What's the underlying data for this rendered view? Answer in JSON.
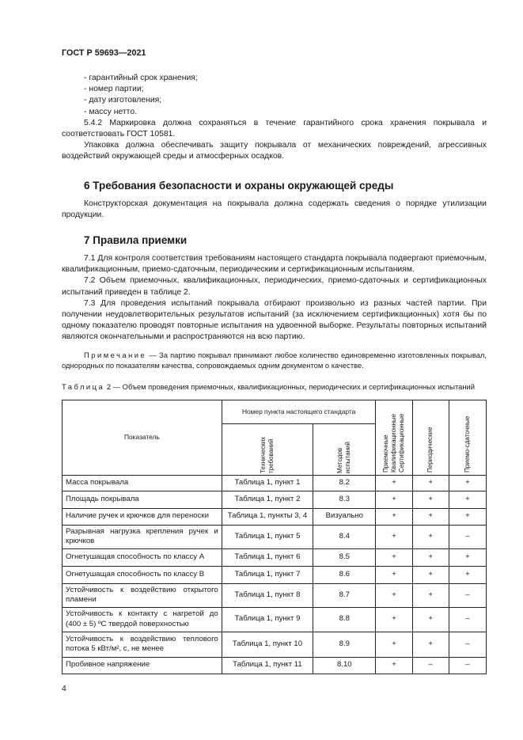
{
  "header": "ГОСТ Р 59693—2021",
  "list": [
    "- гарантийный срок хранения;",
    "- номер партии;",
    "- дату изготовления;",
    "- массу нетто."
  ],
  "p542": "5.4.2 Маркировка должна сохраняться в течение гарантийного срока хранения покрывала и соответствовать ГОСТ 10581.",
  "p_pack": "Упаковка должна обеспечивать защиту покрывала от механических повреждений, агрессивных воздействий окружающей среды и атмосферных осадков.",
  "s6_title": "6 Требования безопасности и охраны окружающей среды",
  "s6_text": "Конструкторская документация на покрывала должна содержать сведения о порядке утилизации продукции.",
  "s7_title": "7 Правила приемки",
  "p71": "7.1 Для контроля соответствия требованиям настоящего стандарта покрывала подвергают приемочным, квалификационным, приемо-сдаточным, периодическим и сертификационным испытаниям.",
  "p72": "7.2 Объем приемочных, квалификационных, периодических, приемо-сдаточных и сертификационных испытаний приведен в таблице 2.",
  "p73": "7.3 Для проведения испытаний покрывала отбирают произвольно из разных частей партии. При получении неудовлетворительных результатов испытаний (за исключением сертификационных) хотя бы по одному показателю проводят повторные испытания на удвоенной выборке. Результаты повторных испытаний являются окончательными и распространяются на всю партию.",
  "note_label": "Примечание",
  "note_text": " — За партию покрывал принимают любое количество единовременно изготовленных покрывал, однородных по показателям качества, сопровождаемых одним документом о качестве.",
  "table_label": "Таблица",
  "table_caption": " 2 — Объем проведения приемочных, квалификационных, периодических и сертификационных испытаний",
  "table": {
    "h_indicator": "Показатель",
    "h_group": "Номер пункта настоящего стандарта",
    "h_tech": "Технических требований",
    "h_methods": "Методов испытаний",
    "h_accept": "Приемочные Квалификационные Сертификационные",
    "h_periodic": "Периодические",
    "h_delivery": "Приемо-сдаточные",
    "rows": [
      [
        "Масса покрывала",
        "Таблица 1, пункт 1",
        "8.2",
        "+",
        "+",
        "+"
      ],
      [
        "Площадь покрывала",
        "Таблица 1, пункт 2",
        "8.3",
        "+",
        "+",
        "+"
      ],
      [
        "Наличие ручек и крючков для переноски",
        "Таблица 1, пункты 3, 4",
        "Визуально",
        "+",
        "+",
        "+"
      ],
      [
        "Разрывная нагрузка крепления ручек и крючков",
        "Таблица 1, пункт 5",
        "8.4",
        "+",
        "+",
        "–"
      ],
      [
        "Огнетушащая способность по классу А",
        "Таблица 1, пункт 6",
        "8.5",
        "+",
        "+",
        "+"
      ],
      [
        "Огнетушащая способность по классу В",
        "Таблица 1, пункт 7",
        "8.6",
        "+",
        "+",
        "+"
      ],
      [
        "Устойчивость к воздействию открытого пламени",
        "Таблица 1, пункт 8",
        "8.7",
        "+",
        "+",
        "–"
      ],
      [
        "Устойчивость к контакту с нагретой до (400 ± 5) ºС твердой поверхностью",
        "Таблица 1, пункт 9",
        "8.8",
        "+",
        "+",
        "–"
      ],
      [
        "Устойчивость к воздействию теплового потока 5 кВт/м², с, не менее",
        "Таблица 1, пункт 10",
        "8.9",
        "+",
        "+",
        "–"
      ],
      [
        "Пробивное напряжение",
        "Таблица 1, пункт 11",
        "8.10",
        "+",
        "–",
        "–"
      ]
    ]
  },
  "page_number": "4"
}
